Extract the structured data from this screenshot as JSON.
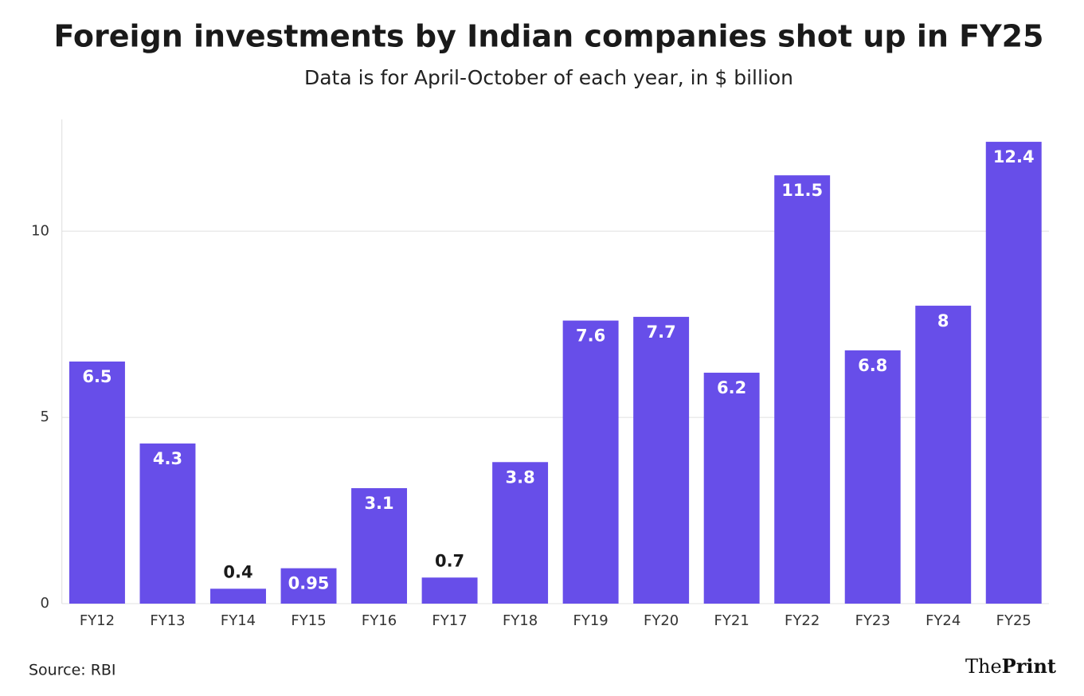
{
  "chart_data": {
    "type": "bar",
    "title": "Foreign investments by Indian companies shot up in FY25",
    "subtitle": "Data is for April-October of each year, in $ billion",
    "categories": [
      "FY12",
      "FY13",
      "FY14",
      "FY15",
      "FY16",
      "FY17",
      "FY18",
      "FY19",
      "FY20",
      "FY21",
      "FY22",
      "FY23",
      "FY24",
      "FY25"
    ],
    "values": [
      6.5,
      4.3,
      0.4,
      0.95,
      3.1,
      0.7,
      3.8,
      7.6,
      7.7,
      6.2,
      11.5,
      6.8,
      8,
      12.4
    ],
    "color": "#674ee9",
    "ylim": [
      0,
      13
    ],
    "yticks": [
      0,
      5,
      10
    ],
    "grid": true,
    "source": "Source: RBI",
    "logo": {
      "the": "The",
      "print": "Print"
    }
  }
}
